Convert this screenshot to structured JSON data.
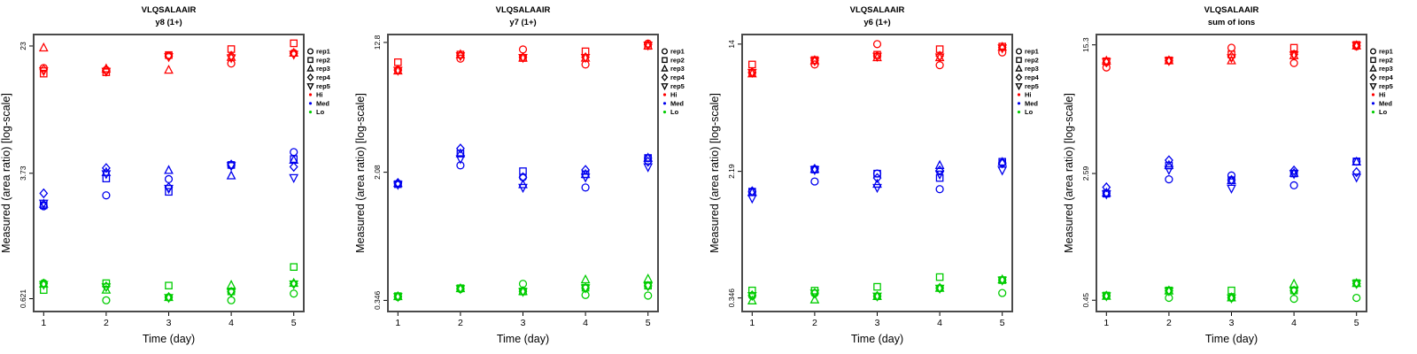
{
  "colors": {
    "hi": "#FF0000",
    "med": "#0000EE",
    "lo": "#00CC00",
    "frame": "#4A4A4A",
    "tick": "#000000",
    "background": "#FFFFFF"
  },
  "rep_markers": {
    "rep1": "circle",
    "rep2": "square",
    "rep3": "triangle-up",
    "rep4": "diamond",
    "rep5": "triangle-down"
  },
  "legend": {
    "items": [
      {
        "label": "rep1",
        "marker": "circle",
        "color": "#000000"
      },
      {
        "label": "rep2",
        "marker": "square",
        "color": "#000000"
      },
      {
        "label": "rep3",
        "marker": "triangle-up",
        "color": "#000000"
      },
      {
        "label": "rep4",
        "marker": "diamond",
        "color": "#000000"
      },
      {
        "label": "rep5",
        "marker": "triangle-down",
        "color": "#000000"
      },
      {
        "label": "Hi",
        "marker": "dot",
        "color": "#FF0000"
      },
      {
        "label": "Med",
        "marker": "dot",
        "color": "#0000EE"
      },
      {
        "label": "Lo",
        "marker": "dot",
        "color": "#00CC00"
      }
    ]
  },
  "chart_data": [
    {
      "type": "scatter",
      "title": "VLQSALAAIR",
      "subtitle": "y8 (1+)",
      "xlabel": "Time (day)",
      "ylabel": "Measured (area ratio) [log-scale]",
      "x": [
        1,
        2,
        3,
        4,
        5
      ],
      "yscale": "log",
      "ylim": [
        0.517,
        27.1
      ],
      "yticks": [
        {
          "label": "23",
          "value": 23
        },
        {
          "label": "3.73",
          "value": 3.73
        },
        {
          "label": "0.621",
          "value": 0.621
        }
      ],
      "series": [
        {
          "name": "Hi",
          "color": "#FF0000",
          "reps": {
            "rep1": [
              16.8,
              16.3,
              20.0,
              17.9,
              20.8
            ],
            "rep2": [
              15.5,
              15.8,
              20.2,
              22.0,
              23.9
            ],
            "rep3": [
              22.4,
              16.6,
              16.3,
              19.6,
              20.8
            ],
            "rep4": [
              16.4,
              16.2,
              19.9,
              20.0,
              20.6
            ],
            "rep5": [
              16.1,
              16.0,
              19.7,
              19.4,
              20.4
            ]
          }
        },
        {
          "name": "Med",
          "color": "#0000EE",
          "reps": {
            "rep1": [
              2.33,
              2.72,
              3.43,
              4.18,
              5.05
            ],
            "rep2": [
              2.36,
              3.46,
              2.86,
              4.2,
              4.57
            ],
            "rep3": [
              2.4,
              3.78,
              3.89,
              3.6,
              4.5
            ],
            "rep4": [
              2.8,
              4.02,
              3.05,
              4.22,
              4.09
            ],
            "rep5": [
              2.43,
              3.7,
              3.0,
              4.15,
              3.5
            ]
          }
        },
        {
          "name": "Lo",
          "color": "#00CC00",
          "reps": {
            "rep1": [
              0.775,
              0.607,
              0.633,
              0.607,
              0.668
            ],
            "rep2": [
              0.703,
              0.775,
              0.749,
              0.689,
              0.977
            ],
            "rep3": [
              0.767,
              0.703,
              0.633,
              0.753,
              0.775
            ],
            "rep4": [
              0.77,
              0.74,
              0.635,
              0.685,
              0.77
            ],
            "rep5": [
              0.76,
              0.735,
              0.63,
              0.68,
              0.765
            ]
          }
        }
      ]
    },
    {
      "type": "scatter",
      "title": "VLQSALAAIR",
      "subtitle": "y7 (1+)",
      "xlabel": "Time (day)",
      "ylabel": "Measured (area ratio) [log-scale]",
      "x": [
        1,
        2,
        3,
        4,
        5
      ],
      "yscale": "log",
      "ylim": [
        0.296,
        14.3
      ],
      "yticks": [
        {
          "label": "12.8",
          "value": 12.8
        },
        {
          "label": "2.08",
          "value": 2.08
        },
        {
          "label": "0.346",
          "value": 0.346
        }
      ],
      "series": [
        {
          "name": "Hi",
          "color": "#FF0000",
          "reps": {
            "rep1": [
              8.7,
              10.2,
              11.6,
              9.4,
              12.6
            ],
            "rep2": [
              9.7,
              10.8,
              10.3,
              11.3,
              12.2
            ],
            "rep3": [
              8.6,
              10.8,
              10.3,
              10.3,
              12.2
            ],
            "rep4": [
              8.7,
              10.7,
              10.4,
              10.4,
              12.4
            ],
            "rep5": [
              8.65,
              10.6,
              10.35,
              10.35,
              12.3
            ]
          }
        },
        {
          "name": "Med",
          "color": "#0000EE",
          "reps": {
            "rep1": [
              1.77,
              2.29,
              1.94,
              1.68,
              2.53
            ],
            "rep2": [
              1.76,
              2.7,
              2.11,
              2.02,
              2.54
            ],
            "rep3": [
              1.78,
              2.7,
              1.75,
              2.02,
              2.54
            ],
            "rep4": [
              1.79,
              2.9,
              1.94,
              2.15,
              2.41
            ],
            "rep5": [
              1.75,
              2.51,
              1.68,
              1.94,
              2.24
            ]
          }
        },
        {
          "name": "Lo",
          "color": "#00CC00",
          "reps": {
            "rep1": [
              0.363,
              0.406,
              0.436,
              0.373,
              0.37
            ],
            "rep2": [
              0.367,
              0.41,
              0.392,
              0.413,
              0.425
            ],
            "rep3": [
              0.365,
              0.408,
              0.392,
              0.462,
              0.467
            ],
            "rep4": [
              0.366,
              0.408,
              0.393,
              0.412,
              0.424
            ],
            "rep5": [
              0.364,
              0.407,
              0.391,
              0.411,
              0.423
            ]
          }
        }
      ]
    },
    {
      "type": "scatter",
      "title": "VLQSALAAIR",
      "subtitle": "y6 (1+)",
      "xlabel": "Time (day)",
      "ylabel": "Measured (area ratio) [log-scale]",
      "x": [
        1,
        2,
        3,
        4,
        5
      ],
      "yscale": "log",
      "ylim": [
        0.284,
        16.1
      ],
      "yticks": [
        {
          "label": "14",
          "value": 14
        },
        {
          "label": "2.19",
          "value": 2.19
        },
        {
          "label": "0.346",
          "value": 0.346
        }
      ],
      "series": [
        {
          "name": "Hi",
          "color": "#FF0000",
          "reps": {
            "rep1": [
              9.2,
              10.4,
              14.0,
              10.3,
              12.4
            ],
            "rep2": [
              10.4,
              11.1,
              12.0,
              13.0,
              13.5
            ],
            "rep3": [
              9.1,
              11.0,
              11.5,
              11.5,
              13.4
            ],
            "rep4": [
              9.3,
              11.05,
              11.8,
              11.8,
              13.3
            ],
            "rep5": [
              9.25,
              10.95,
              11.7,
              11.6,
              13.2
            ]
          }
        },
        {
          "name": "Med",
          "color": "#0000EE",
          "reps": {
            "rep1": [
              1.62,
              1.89,
              2.12,
              1.69,
              2.48
            ],
            "rep2": [
              1.63,
              2.25,
              2.12,
              1.99,
              2.52
            ],
            "rep3": [
              1.61,
              2.26,
              1.82,
              2.39,
              2.5
            ],
            "rep4": [
              1.64,
              2.27,
              1.99,
              2.22,
              2.46
            ],
            "rep5": [
              1.48,
              2.24,
              1.73,
              2.1,
              2.23
            ]
          }
        },
        {
          "name": "Lo",
          "color": "#00CC00",
          "reps": {
            "rep1": [
              0.357,
              0.37,
              0.354,
              0.399,
              0.372
            ],
            "rep2": [
              0.386,
              0.385,
              0.407,
              0.469,
              0.449
            ],
            "rep3": [
              0.332,
              0.337,
              0.354,
              0.399,
              0.452
            ],
            "rep4": [
              0.36,
              0.372,
              0.356,
              0.4,
              0.45
            ],
            "rep5": [
              0.358,
              0.371,
              0.355,
              0.398,
              0.448
            ]
          }
        }
      ]
    },
    {
      "type": "scatter",
      "title": "VLQSALAAIR",
      "subtitle": "sum of ions",
      "xlabel": "Time (day)",
      "ylabel": "Measured (area ratio) [log-scale]",
      "x": [
        1,
        2,
        3,
        4,
        5
      ],
      "yscale": "log",
      "ylim": [
        0.385,
        17.65
      ],
      "yticks": [
        {
          "label": "15.3",
          "value": 15.3
        },
        {
          "label": "2.59",
          "value": 2.59
        },
        {
          "label": "0.45",
          "value": 0.45
        }
      ],
      "series": [
        {
          "name": "Hi",
          "color": "#FF0000",
          "reps": {
            "rep1": [
              11.2,
              12.3,
              14.7,
              11.9,
              15.0
            ],
            "rep2": [
              12.2,
              12.35,
              13.4,
              14.7,
              15.3
            ],
            "rep3": [
              12.25,
              12.3,
              12.3,
              13.2,
              15.1
            ],
            "rep4": [
              12.0,
              12.32,
              13.0,
              13.4,
              15.2
            ],
            "rep5": [
              12.1,
              12.28,
              12.8,
              13.3,
              15.15
            ]
          }
        },
        {
          "name": "Med",
          "color": "#0000EE",
          "reps": {
            "rep1": [
              1.97,
              2.39,
              2.52,
              2.2,
              3.05
            ],
            "rep2": [
              1.96,
              2.89,
              2.36,
              2.59,
              3.06
            ],
            "rep3": [
              1.98,
              2.9,
              2.35,
              2.6,
              3.04
            ],
            "rep4": [
              2.14,
              3.11,
              2.37,
              2.7,
              2.64
            ],
            "rep5": [
              1.95,
              2.73,
              2.11,
              2.58,
              2.46
            ]
          }
        },
        {
          "name": "Lo",
          "color": "#00CC00",
          "reps": {
            "rep1": [
              0.478,
              0.465,
              0.465,
              0.459,
              0.465
            ],
            "rep2": [
              0.48,
              0.515,
              0.515,
              0.515,
              0.57
            ],
            "rep3": [
              0.476,
              0.512,
              0.466,
              0.563,
              0.568
            ],
            "rep4": [
              0.479,
              0.513,
              0.467,
              0.514,
              0.566
            ],
            "rep5": [
              0.477,
              0.511,
              0.464,
              0.512,
              0.565
            ]
          }
        }
      ]
    }
  ]
}
